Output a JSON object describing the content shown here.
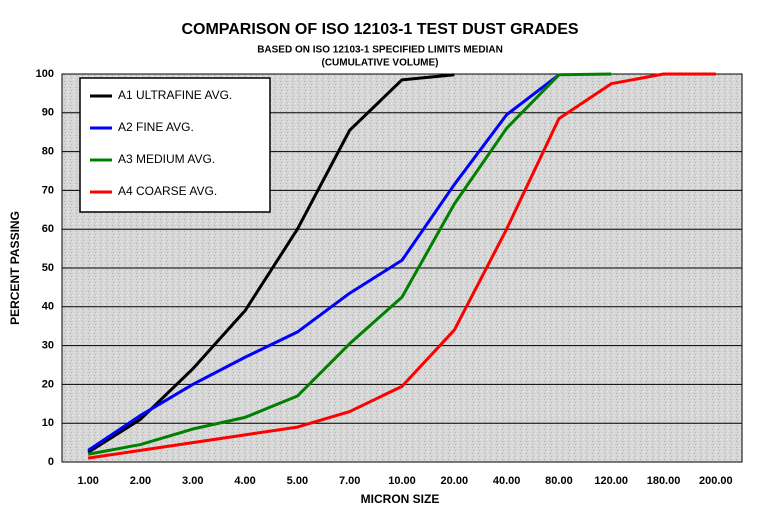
{
  "chart_data": {
    "type": "line",
    "title": "COMPARISON OF ISO 12103-1 TEST DUST GRADES",
    "subtitle": [
      "BASED ON ISO 12103-1 SPECIFIED LIMITS MEDIAN",
      "(CUMULATIVE VOLUME)"
    ],
    "x_label": "MICRON SIZE",
    "y_label": "PERCENT PASSING",
    "categories": [
      "1.00",
      "2.00",
      "3.00",
      "4.00",
      "5.00",
      "7.00",
      "10.00",
      "20.00",
      "40.00",
      "80.00",
      "120.00",
      "180.00",
      "200.00"
    ],
    "series": [
      {
        "name": "A1 ULTRAFINE AVG.",
        "color": "#000000",
        "values": [
          2.5,
          11,
          24,
          39,
          60,
          85.5,
          98.5,
          99.8,
          null,
          null,
          null,
          null,
          null
        ]
      },
      {
        "name": "A2 FINE AVG.",
        "color": "#0000ff",
        "values": [
          3,
          12,
          20,
          27,
          33.5,
          43.5,
          52,
          71.5,
          89.5,
          99.8,
          null,
          null,
          null
        ]
      },
      {
        "name": "A3 MEDIUM AVG.",
        "color": "#008000",
        "values": [
          2,
          4.5,
          8.5,
          11.5,
          17,
          30.5,
          42.5,
          66.5,
          86,
          99.8,
          100,
          null,
          null
        ]
      },
      {
        "name": "A4 COARSE AVG.",
        "color": "#ff0000",
        "values": [
          1,
          3,
          5,
          7,
          9,
          13,
          19.5,
          34,
          60,
          88.5,
          97.5,
          100,
          100
        ]
      }
    ],
    "ylim": [
      0,
      100
    ],
    "yticks": [
      0,
      10,
      20,
      30,
      40,
      50,
      60,
      70,
      80,
      90,
      100
    ],
    "grid": true,
    "legend": "upper left"
  }
}
